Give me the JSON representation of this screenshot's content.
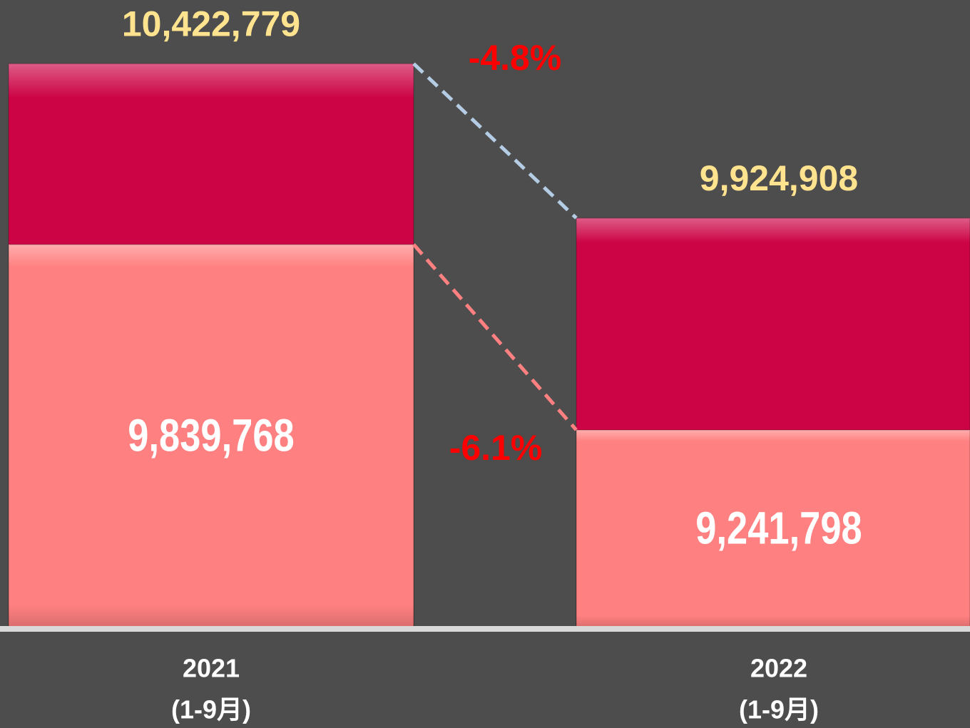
{
  "chart_data": {
    "type": "bar",
    "categories": [
      [
        "2021",
        "(1-9月)"
      ],
      [
        "2022",
        "(1-9月)"
      ]
    ],
    "series": [
      {
        "color": "#cc0446",
        "values": [
          10422779,
          9924908
        ],
        "value_labels": [
          "10,422,779",
          "9,924,908"
        ]
      },
      {
        "color": "#ff8080",
        "values": [
          9839768,
          9241798
        ],
        "value_labels": [
          "9,839,768",
          "9,241,798"
        ]
      }
    ],
    "ylim": [
      8605000,
      10628000
    ],
    "annotations": [
      "-4.8%",
      "-6.1%"
    ]
  }
}
